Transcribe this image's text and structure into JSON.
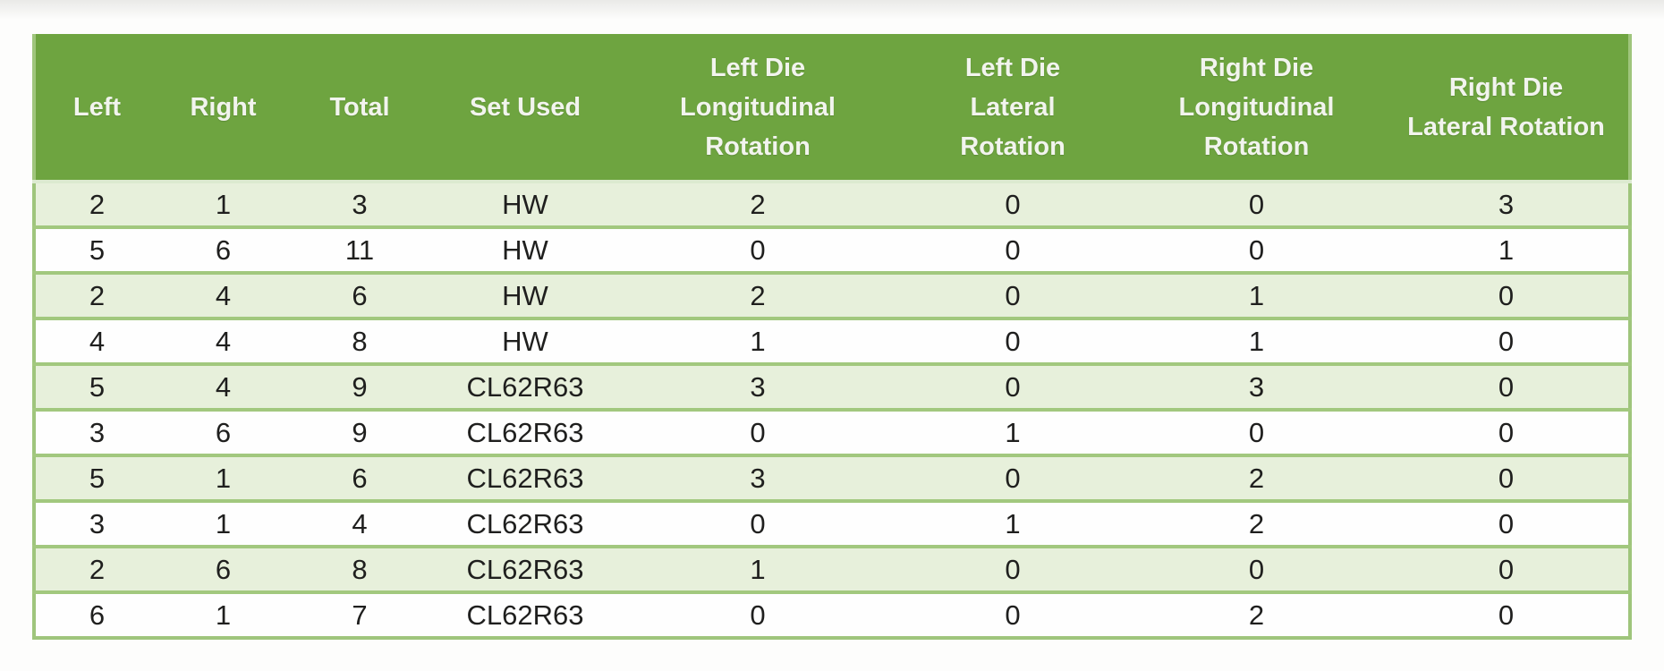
{
  "table": {
    "columns": [
      {
        "key": "left",
        "label": "Left"
      },
      {
        "key": "right",
        "label": "Right"
      },
      {
        "key": "total",
        "label": "Total"
      },
      {
        "key": "set-used",
        "label": "Set Used"
      },
      {
        "key": "left-die-longitudinal-rotation",
        "label": "Left Die\nLongitudinal\nRotation"
      },
      {
        "key": "left-die-lateral-rotation",
        "label": "Left Die\nLateral\nRotation"
      },
      {
        "key": "right-die-longitudinal-rotation",
        "label": "Right Die\nLongitudinal\nRotation"
      },
      {
        "key": "right-die-lateral-rotation",
        "label": "Right Die\nLateral Rotation"
      }
    ],
    "rows": [
      [
        "2",
        "1",
        "3",
        "HW",
        "2",
        "0",
        "0",
        "3"
      ],
      [
        "5",
        "6",
        "11",
        "HW",
        "0",
        "0",
        "0",
        "1"
      ],
      [
        "2",
        "4",
        "6",
        "HW",
        "2",
        "0",
        "1",
        "0"
      ],
      [
        "4",
        "4",
        "8",
        "HW",
        "1",
        "0",
        "1",
        "0"
      ],
      [
        "5",
        "4",
        "9",
        "CL62R63",
        "3",
        "0",
        "3",
        "0"
      ],
      [
        "3",
        "6",
        "9",
        "CL62R63",
        "0",
        "1",
        "0",
        "0"
      ],
      [
        "5",
        "1",
        "6",
        "CL62R63",
        "3",
        "0",
        "2",
        "0"
      ],
      [
        "3",
        "1",
        "4",
        "CL62R63",
        "0",
        "1",
        "2",
        "0"
      ],
      [
        "2",
        "6",
        "8",
        "CL62R63",
        "1",
        "0",
        "0",
        "0"
      ],
      [
        "6",
        "1",
        "7",
        "CL62R63",
        "0",
        "0",
        "2",
        "0"
      ]
    ],
    "colors": {
      "header_bg": "#6ea440",
      "header_text": "#f2f4ee",
      "row_alt_bg": "#e7f0db",
      "row_bg": "#fefefe",
      "grid_line": "#a2c87e",
      "data_text": "#1f1f1e"
    }
  }
}
